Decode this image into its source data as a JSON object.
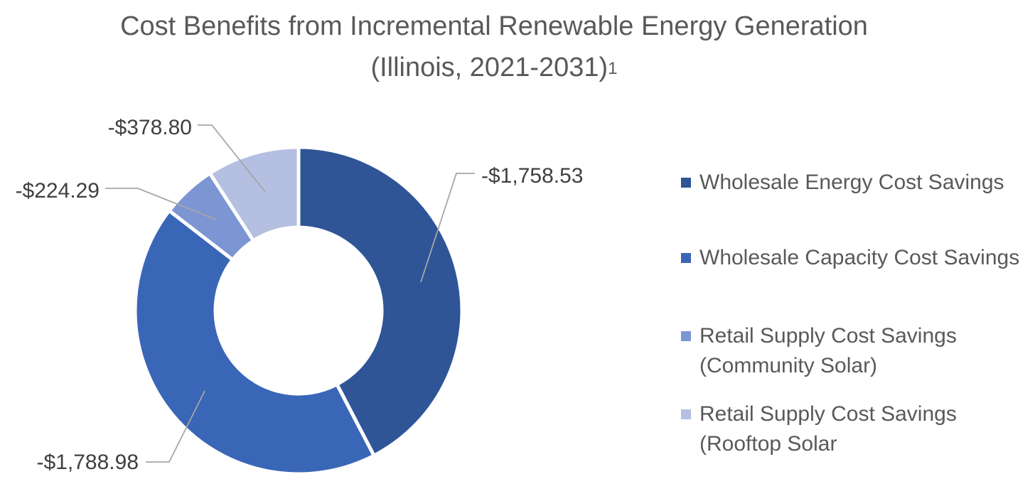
{
  "chart_data": {
    "type": "donut",
    "title_line1": "Cost Benefits from Incremental Renewable Energy Generation",
    "title_line2": "(Illinois, 2021-2031)",
    "title_superscript": "1",
    "series": [
      {
        "name": "Wholesale Energy Cost Savings",
        "value": -1758.53,
        "label": "-$1,758.53",
        "color": "#2F5597"
      },
      {
        "name": "Wholesale Capacity Cost Savings",
        "value": -1788.98,
        "label": "-$1,788.98",
        "color": "#3A66B7"
      },
      {
        "name": "Retail Supply Cost Savings\n(Community Solar)",
        "value": -224.29,
        "label": "-$224.29",
        "color": "#7C95D3"
      },
      {
        "name": "Retail Supply Cost Savings\n(Rooftop Solar",
        "value": -378.8,
        "label": "-$378.80",
        "color": "#B4BFE2"
      }
    ],
    "legend_position": "right"
  }
}
